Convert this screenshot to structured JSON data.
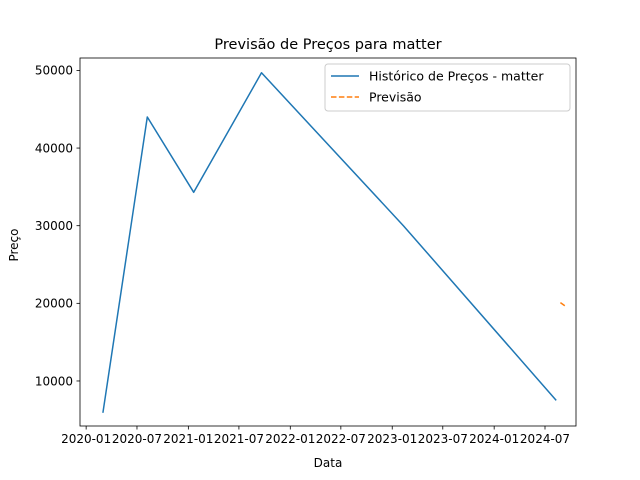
{
  "chart_data": {
    "type": "line",
    "title": "Previsão de Preços para matter",
    "xlabel": "Data",
    "ylabel": "Preço",
    "xlim": [
      "2019-12-10",
      "2024-10-20"
    ],
    "ylim": [
      4200,
      51600
    ],
    "x_ticks": [
      "2020-01",
      "2020-07",
      "2021-01",
      "2021-07",
      "2022-01",
      "2022-07",
      "2023-01",
      "2023-07",
      "2024-01",
      "2024-07"
    ],
    "x_tick_dates": [
      "2020-01-01",
      "2020-07-01",
      "2021-01-01",
      "2021-07-01",
      "2022-01-01",
      "2022-07-01",
      "2023-01-01",
      "2023-07-01",
      "2024-01-01",
      "2024-07-01"
    ],
    "y_ticks": [
      10000,
      20000,
      30000,
      40000,
      50000
    ],
    "grid": false,
    "legend_position": "top-right",
    "series": [
      {
        "name": "Histórico de Preços - matter",
        "color": "#1f77b4",
        "style": "solid",
        "points": [
          {
            "x": "2020-03-01",
            "y": 5900
          },
          {
            "x": "2020-08-07",
            "y": 44000
          },
          {
            "x": "2021-01-20",
            "y": 34300
          },
          {
            "x": "2021-09-20",
            "y": 49700
          },
          {
            "x": "2023-02-10",
            "y": 30000
          },
          {
            "x": "2024-08-10",
            "y": 7500
          }
        ]
      },
      {
        "name": "Previsão",
        "color": "#ff7f0e",
        "style": "dashed",
        "points": [
          {
            "x": "2024-08-25",
            "y": 20100
          },
          {
            "x": "2024-09-10",
            "y": 19700
          }
        ]
      }
    ]
  }
}
